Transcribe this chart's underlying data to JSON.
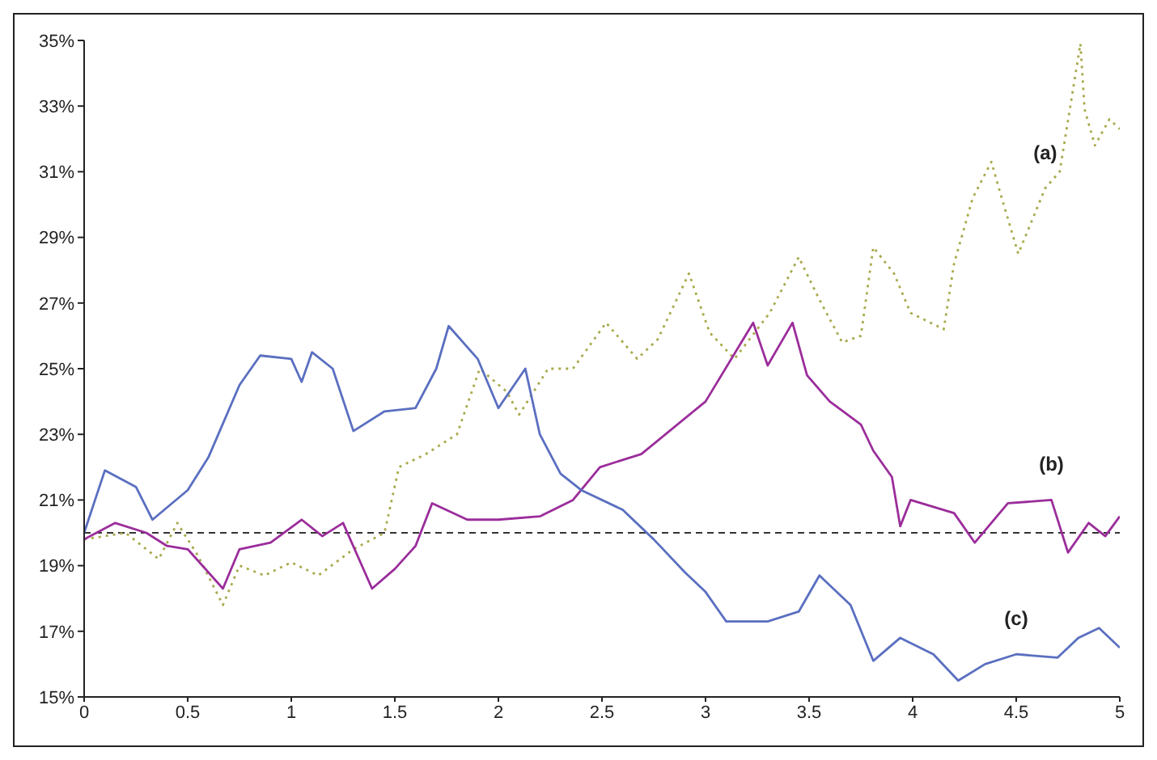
{
  "chart_data": {
    "type": "line",
    "xlim": [
      0,
      5
    ],
    "xticks": [
      0,
      0.5,
      1,
      1.5,
      2,
      2.5,
      3,
      3.5,
      4,
      4.5,
      5
    ],
    "ylim": [
      15,
      35
    ],
    "yticks": [
      {
        "value": 15,
        "label": "15%"
      },
      {
        "value": 17,
        "label": "17%"
      },
      {
        "value": 19,
        "label": "19%"
      },
      {
        "value": 21,
        "label": "21%"
      },
      {
        "value": 23,
        "label": "23%"
      },
      {
        "value": 25,
        "label": "25%"
      },
      {
        "value": 27,
        "label": "27%"
      },
      {
        "value": 29,
        "label": "29%"
      },
      {
        "value": 31,
        "label": "31%"
      },
      {
        "value": 33,
        "label": "33%"
      },
      {
        "value": 35,
        "label": "35%"
      }
    ],
    "marker": "none",
    "series": [
      {
        "name": "(a)",
        "color": "#a8aa4c",
        "line_style": "dotted",
        "x": [
          0,
          0.2,
          0.36,
          0.45,
          0.55,
          0.67,
          0.75,
          0.87,
          1.0,
          1.13,
          1.3,
          1.45,
          1.52,
          1.65,
          1.8,
          1.91,
          2.04,
          2.1,
          2.24,
          2.36,
          2.52,
          2.67,
          2.77,
          2.92,
          3.02,
          3.14,
          3.31,
          3.45,
          3.55,
          3.66,
          3.75,
          3.81,
          3.91,
          3.99,
          4.15,
          4.2,
          4.29,
          4.38,
          4.43,
          4.51,
          4.64,
          4.71,
          4.81,
          4.83,
          4.88,
          4.95,
          5.0
        ],
        "values": [
          19.8,
          20.0,
          19.2,
          20.3,
          19.3,
          17.8,
          19.0,
          18.7,
          19.1,
          18.7,
          19.5,
          20.0,
          22.0,
          22.4,
          23.0,
          25.0,
          24.3,
          23.6,
          25.0,
          25.0,
          26.4,
          25.3,
          25.9,
          27.9,
          26.1,
          25.3,
          26.7,
          28.4,
          27.1,
          25.8,
          26.0,
          28.7,
          27.9,
          26.7,
          26.2,
          28.2,
          30.2,
          31.3,
          30.2,
          28.5,
          30.5,
          31.0,
          34.9,
          32.9,
          31.8,
          32.6,
          32.3
        ]
      },
      {
        "name": "(b)",
        "color": "#9b2d9b",
        "line_style": "solid",
        "x": [
          0,
          0.15,
          0.3,
          0.4,
          0.5,
          0.67,
          0.75,
          0.9,
          1.05,
          1.15,
          1.25,
          1.39,
          1.5,
          1.6,
          1.68,
          1.85,
          2.0,
          2.2,
          2.36,
          2.49,
          2.69,
          3.0,
          3.23,
          3.3,
          3.42,
          3.49,
          3.6,
          3.75,
          3.81,
          3.9,
          3.94,
          3.99,
          4.2,
          4.3,
          4.46,
          4.67,
          4.75,
          4.85,
          4.93,
          5.0
        ],
        "values": [
          19.8,
          20.3,
          20.0,
          19.6,
          19.5,
          18.3,
          19.5,
          19.7,
          20.4,
          19.9,
          20.3,
          18.3,
          18.9,
          19.6,
          20.9,
          20.4,
          20.4,
          20.5,
          21.0,
          22.0,
          22.4,
          24.0,
          26.4,
          25.1,
          26.4,
          24.8,
          24.0,
          23.3,
          22.5,
          21.7,
          20.2,
          21.0,
          20.6,
          19.7,
          20.9,
          21.0,
          19.4,
          20.3,
          19.9,
          20.5
        ]
      },
      {
        "name": "(c)",
        "color": "#5a6fc0",
        "line_style": "solid",
        "x": [
          0,
          0.1,
          0.25,
          0.33,
          0.5,
          0.6,
          0.75,
          0.85,
          1.0,
          1.05,
          1.1,
          1.2,
          1.3,
          1.45,
          1.6,
          1.7,
          1.76,
          1.9,
          2.0,
          2.13,
          2.2,
          2.3,
          2.4,
          2.6,
          2.75,
          2.9,
          3.0,
          3.1,
          3.3,
          3.45,
          3.55,
          3.7,
          3.81,
          3.94,
          4.1,
          4.22,
          4.35,
          4.5,
          4.7,
          4.8,
          4.9,
          5.0
        ],
        "values": [
          20.0,
          21.9,
          21.4,
          20.4,
          21.3,
          22.3,
          24.5,
          25.4,
          25.3,
          24.6,
          25.5,
          25.0,
          23.1,
          23.7,
          23.8,
          25.0,
          26.3,
          25.3,
          23.8,
          25.0,
          23.0,
          21.8,
          21.3,
          20.7,
          19.8,
          18.8,
          18.2,
          17.3,
          17.3,
          17.6,
          18.7,
          17.8,
          16.1,
          16.8,
          16.3,
          15.5,
          16.0,
          16.3,
          16.2,
          16.8,
          17.1,
          16.5
        ]
      }
    ],
    "ref_lines": [
      {
        "axis": "y",
        "value": 20,
        "color": "#333333",
        "line_style": "dashed"
      }
    ]
  }
}
